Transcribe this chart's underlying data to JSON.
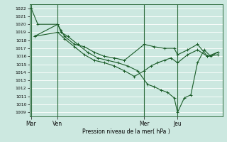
{
  "background_color": "#cce8e0",
  "grid_color": "#aacccc",
  "line_color": "#1a5c28",
  "marker_color": "#1a5c28",
  "xlabel": "Pression niveau de la mer( hPa )",
  "ylim": [
    1008.5,
    1022.5
  ],
  "yticks": [
    1009,
    1010,
    1011,
    1012,
    1013,
    1014,
    1015,
    1016,
    1017,
    1018,
    1019,
    1020,
    1021,
    1022
  ],
  "xtick_labels": [
    "Mar",
    "Ven",
    "Mer",
    "Jeu"
  ],
  "xtick_positions": [
    0,
    16,
    68,
    88
  ],
  "xlim": [
    -1,
    115
  ],
  "series1": {
    "x": [
      0,
      4,
      16,
      18,
      20,
      26,
      32,
      38,
      44,
      50,
      56,
      68,
      74,
      80,
      86,
      88,
      94,
      100,
      106,
      112
    ],
    "y": [
      1022,
      1020,
      1020,
      1019.2,
      1018.5,
      1017.5,
      1017.2,
      1016.5,
      1016,
      1015.8,
      1015.5,
      1017.5,
      1017.2,
      1017.0,
      1017.0,
      1016.2,
      1016.8,
      1017.5,
      1016.0,
      1016.5
    ]
  },
  "series2": {
    "x": [
      2,
      16,
      20,
      26,
      32,
      38,
      44,
      50,
      56,
      62,
      68,
      72,
      76,
      80,
      84,
      88,
      94,
      100,
      106,
      112
    ],
    "y": [
      1018.5,
      1019,
      1018.2,
      1017.2,
      1016.2,
      1015.5,
      1015.2,
      1014.8,
      1014.2,
      1013.5,
      1014.2,
      1014.8,
      1015.2,
      1015.5,
      1015.8,
      1015.2,
      1016.2,
      1016.8,
      1016.0,
      1016.2
    ]
  },
  "series3": {
    "x": [
      2,
      16,
      18,
      22,
      28,
      34,
      40,
      46,
      52,
      58,
      64,
      70,
      74,
      78,
      82,
      86,
      88,
      92,
      96,
      100,
      104,
      108,
      112
    ],
    "y": [
      1018.5,
      1020,
      1019,
      1018.5,
      1017.5,
      1016.5,
      1015.8,
      1015.5,
      1015.2,
      1014.8,
      1014.2,
      1012.5,
      1012.2,
      1011.8,
      1011.5,
      1010.8,
      1009.0,
      1010.8,
      1011.2,
      1015.2,
      1016.8,
      1016.0,
      1016.5
    ]
  }
}
